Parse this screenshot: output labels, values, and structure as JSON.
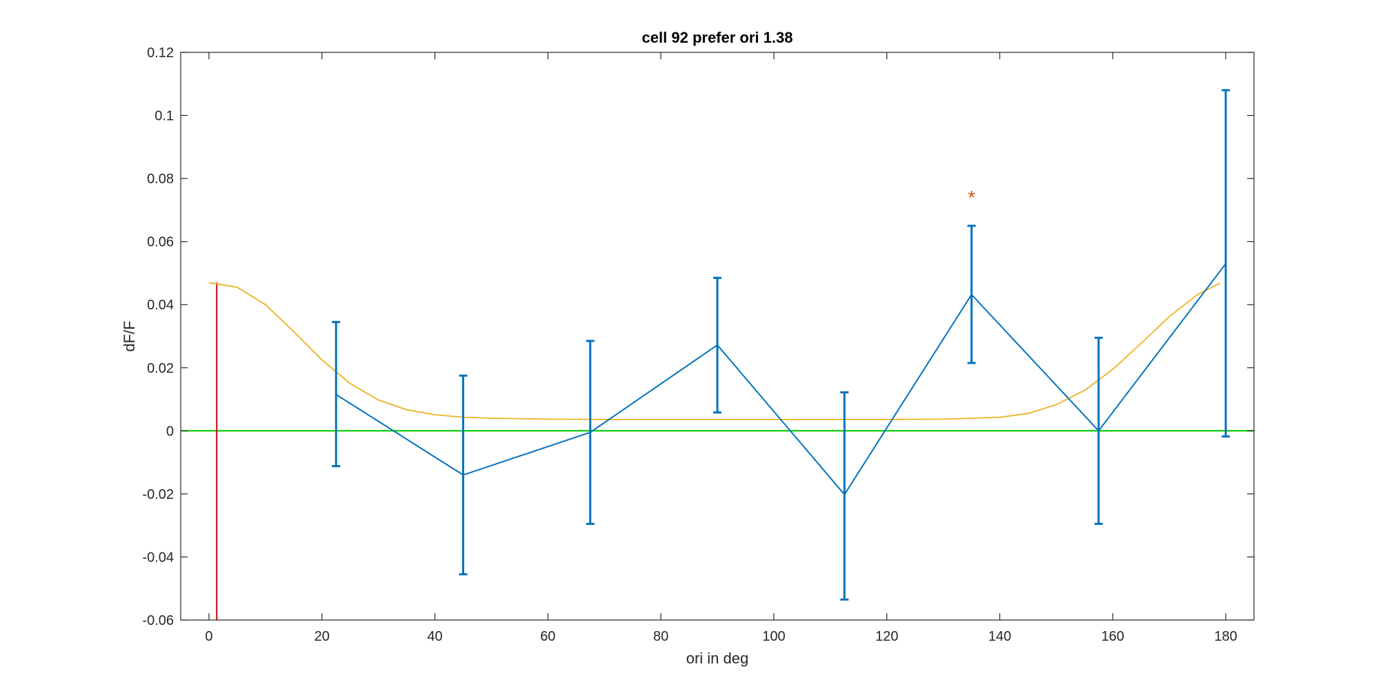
{
  "chart_data": {
    "type": "line",
    "title": "cell 92 prefer ori 1.38",
    "xlabel": "ori in deg",
    "ylabel": "dF/F",
    "xlim": [
      -5,
      185
    ],
    "ylim": [
      -0.06,
      0.12
    ],
    "xticks": [
      0,
      20,
      40,
      60,
      80,
      100,
      120,
      140,
      160,
      180
    ],
    "xtick_labels": [
      "0",
      "20",
      "40",
      "60",
      "80",
      "100",
      "120",
      "140",
      "160",
      "180"
    ],
    "yticks": [
      -0.06,
      -0.04,
      -0.02,
      0,
      0.02,
      0.04,
      0.06,
      0.08,
      0.1,
      0.12
    ],
    "ytick_labels": [
      "-0.06",
      "-0.04",
      "-0.02",
      "0",
      "0.02",
      "0.04",
      "0.06",
      "0.08",
      "0.1",
      "0.12"
    ],
    "grid": false,
    "legend": "none",
    "series": [
      {
        "kind": "errorbar",
        "color": "#0072BD",
        "x": [
          22.5,
          45,
          67.5,
          90,
          112.5,
          135,
          157.5,
          180
        ],
        "y": [
          0.0115,
          -0.014,
          -0.0005,
          0.0272,
          -0.0202,
          0.0432,
          0.0,
          0.053
        ],
        "err_low": [
          -0.0112,
          -0.0455,
          -0.0295,
          0.0058,
          -0.0535,
          0.0215,
          -0.0295,
          -0.0018
        ],
        "err_high": [
          0.0345,
          0.0175,
          0.0285,
          0.0485,
          0.0122,
          0.065,
          0.0295,
          0.108
        ]
      },
      {
        "kind": "fit",
        "color": "#EDB120",
        "x": [
          0,
          5,
          10,
          15,
          20,
          25,
          30,
          35,
          40,
          45,
          50,
          60,
          70,
          80,
          90,
          100,
          110,
          120,
          130,
          140,
          145,
          150,
          155,
          160,
          165,
          170,
          175,
          179
        ],
        "y": [
          0.047,
          0.0455,
          0.04,
          0.0315,
          0.0225,
          0.015,
          0.0098,
          0.0067,
          0.0051,
          0.0043,
          0.004,
          0.0037,
          0.0036,
          0.0036,
          0.0036,
          0.0036,
          0.0036,
          0.0036,
          0.0037,
          0.0043,
          0.0055,
          0.0083,
          0.0128,
          0.0195,
          0.0277,
          0.0362,
          0.0432,
          0.0468
        ]
      },
      {
        "kind": "baseline",
        "color": "#00CC00",
        "y": 0
      },
      {
        "kind": "preferred-ori-line",
        "color": "#CC0000",
        "x": 1.38,
        "y_from": -0.06,
        "y_to": 0.047
      },
      {
        "kind": "significance-marker",
        "color": "#D95319",
        "symbol": "*",
        "x": 135,
        "y": 0.075
      }
    ]
  }
}
